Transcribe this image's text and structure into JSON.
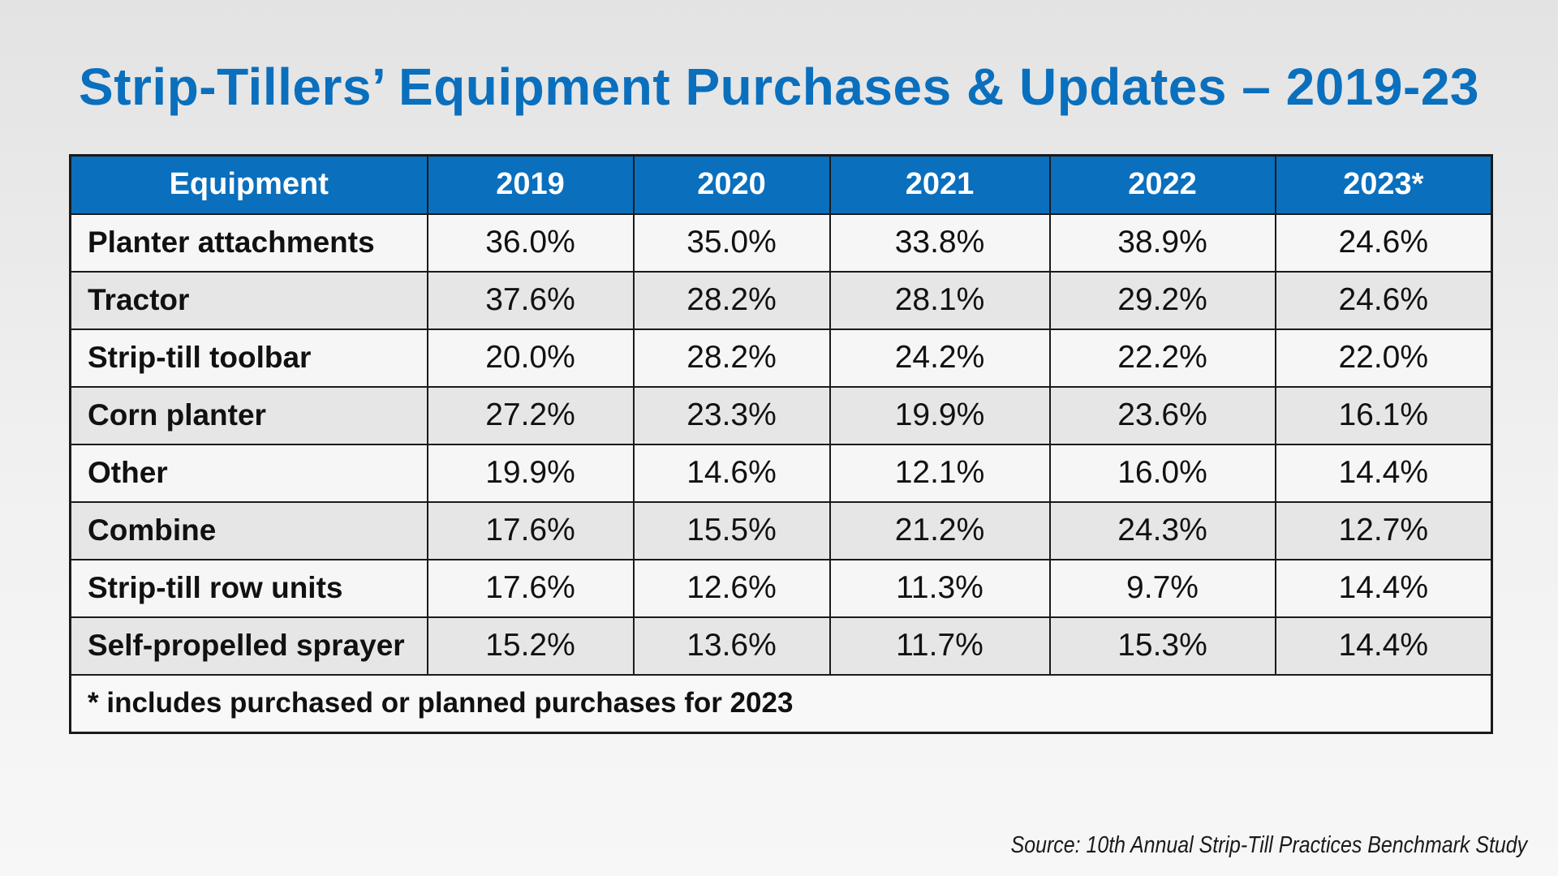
{
  "title": "Strip-Tillers’ Equipment Purchases & Updates – 2019-23",
  "table": {
    "headers": [
      "Equipment",
      "2019",
      "2020",
      "2021",
      "2022",
      "2023*"
    ],
    "rows": [
      [
        "Planter attachments",
        "36.0%",
        "35.0%",
        "33.8%",
        "38.9%",
        "24.6%"
      ],
      [
        "Tractor",
        "37.6%",
        "28.2%",
        "28.1%",
        "29.2%",
        "24.6%"
      ],
      [
        "Strip-till toolbar",
        "20.0%",
        "28.2%",
        "24.2%",
        "22.2%",
        "22.0%"
      ],
      [
        "Corn planter",
        "27.2%",
        "23.3%",
        "19.9%",
        "23.6%",
        "16.1%"
      ],
      [
        "Other",
        "19.9%",
        "14.6%",
        "12.1%",
        "16.0%",
        "14.4%"
      ],
      [
        "Combine",
        "17.6%",
        "15.5%",
        "21.2%",
        "24.3%",
        "12.7%"
      ],
      [
        "Strip-till row units",
        "17.6%",
        "12.6%",
        "11.3%",
        "9.7%",
        "14.4%"
      ],
      [
        "Self-propelled sprayer",
        "15.2%",
        "13.6%",
        "11.7%",
        "15.3%",
        "14.4%"
      ]
    ],
    "footnote": "* includes purchased or planned purchases for 2023"
  },
  "source": "Source: 10th Annual Strip-Till Practices Benchmark Study",
  "colors": {
    "accent": "#0a6fbd",
    "header_text": "#ffffff",
    "row_light": "#f6f6f6",
    "row_dark": "#e6e6e6",
    "border": "#1a1a1a"
  }
}
